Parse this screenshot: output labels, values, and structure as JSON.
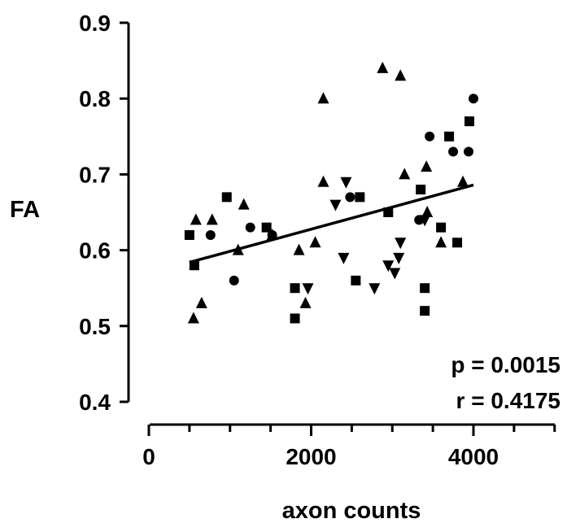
{
  "chart_data": {
    "type": "scatter",
    "title": "",
    "xlabel": "axon counts",
    "ylabel": "FA",
    "xlim": [
      0,
      5000
    ],
    "ylim": [
      0.4,
      0.9
    ],
    "x_ticks": [
      "0",
      "2000",
      "4000"
    ],
    "y_ticks": [
      "0.4",
      "0.5",
      "0.6",
      "0.7",
      "0.8",
      "0.9"
    ],
    "grid": false,
    "legend": "none",
    "annotations": {
      "p": "p = 0.0015",
      "r": "r = 0.4175"
    },
    "fit_line": {
      "x": [
        500,
        4000
      ],
      "y": [
        0.584,
        0.686
      ]
    },
    "marker_color": "#000000",
    "series": [
      {
        "marker": "square",
        "points": [
          [
            500,
            0.62
          ],
          [
            560,
            0.58
          ],
          [
            960,
            0.67
          ],
          [
            1450,
            0.63
          ],
          [
            1800,
            0.55
          ],
          [
            1800,
            0.51
          ],
          [
            2600,
            0.67
          ],
          [
            2550,
            0.56
          ],
          [
            2950,
            0.65
          ],
          [
            3350,
            0.68
          ],
          [
            3400,
            0.55
          ],
          [
            3400,
            0.52
          ],
          [
            3600,
            0.63
          ],
          [
            3700,
            0.75
          ],
          [
            3800,
            0.61
          ],
          [
            3950,
            0.77
          ]
        ]
      },
      {
        "marker": "triangle",
        "points": [
          [
            550,
            0.51
          ],
          [
            580,
            0.64
          ],
          [
            650,
            0.53
          ],
          [
            780,
            0.64
          ],
          [
            1100,
            0.6
          ],
          [
            1170,
            0.66
          ],
          [
            1520,
            0.62
          ],
          [
            1850,
            0.6
          ],
          [
            1930,
            0.53
          ],
          [
            2050,
            0.61
          ],
          [
            2150,
            0.8
          ],
          [
            2150,
            0.69
          ],
          [
            2880,
            0.84
          ],
          [
            3100,
            0.83
          ],
          [
            3150,
            0.7
          ],
          [
            3420,
            0.71
          ],
          [
            3430,
            0.65
          ],
          [
            3600,
            0.61
          ],
          [
            3870,
            0.69
          ]
        ]
      },
      {
        "marker": "triangle-down",
        "points": [
          [
            1960,
            0.55
          ],
          [
            2300,
            0.66
          ],
          [
            2430,
            0.69
          ],
          [
            2400,
            0.59
          ],
          [
            2780,
            0.55
          ],
          [
            2950,
            0.58
          ],
          [
            3030,
            0.57
          ],
          [
            3080,
            0.59
          ],
          [
            3100,
            0.61
          ],
          [
            3400,
            0.64
          ]
        ]
      },
      {
        "marker": "circle",
        "points": [
          [
            760,
            0.62
          ],
          [
            1050,
            0.56
          ],
          [
            1250,
            0.63
          ],
          [
            1520,
            0.62
          ],
          [
            2480,
            0.67
          ],
          [
            3330,
            0.64
          ],
          [
            3460,
            0.75
          ],
          [
            3750,
            0.73
          ],
          [
            3940,
            0.73
          ],
          [
            4000,
            0.8
          ]
        ]
      }
    ]
  }
}
